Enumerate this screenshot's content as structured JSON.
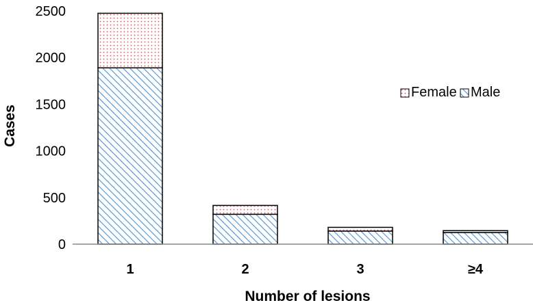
{
  "chart_data": {
    "type": "bar",
    "stacked": true,
    "title": "",
    "xlabel": "Number of lesions",
    "ylabel": "Cases",
    "categories": [
      "1",
      "2",
      "3",
      "≥4"
    ],
    "series": [
      {
        "name": "Male",
        "values": [
          1890,
          320,
          140,
          125
        ]
      },
      {
        "name": "Female",
        "values": [
          585,
          95,
          40,
          20
        ]
      }
    ],
    "ylim": [
      0,
      2500
    ],
    "yticks": [
      "0",
      "500",
      "1000",
      "1500",
      "2000",
      "2500"
    ],
    "grid": false,
    "legend": {
      "placement": "right",
      "entries": [
        "Female",
        "Male"
      ]
    },
    "colors": {
      "Male": "#4a90d9",
      "Female": "#e84a5a"
    }
  }
}
